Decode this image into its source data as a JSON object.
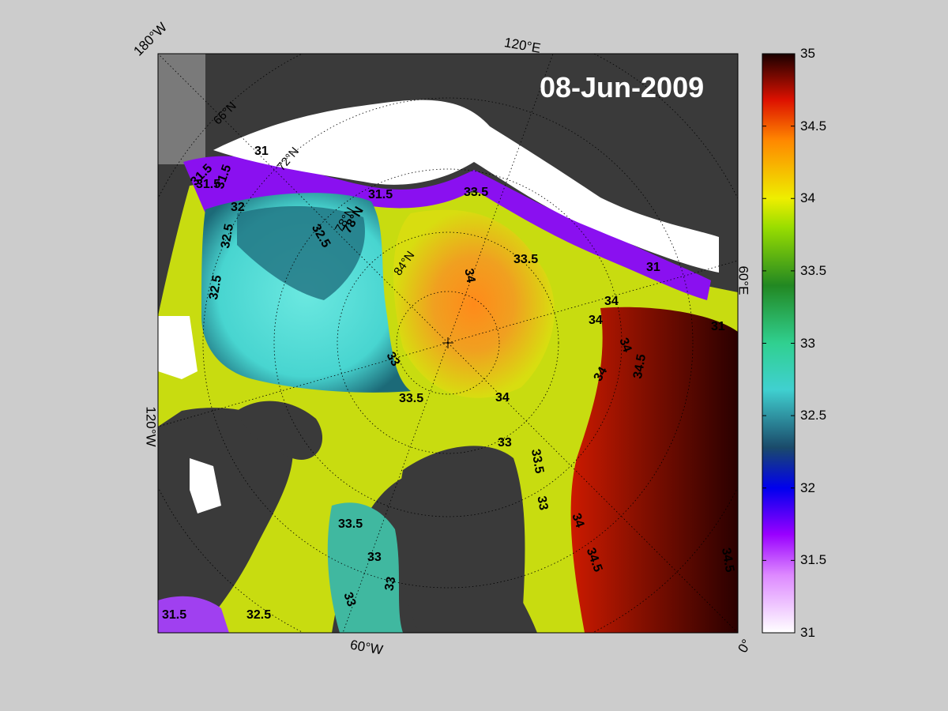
{
  "date": "08-Jun-2009",
  "corner_labels": {
    "top_left": "180°W",
    "top": "120°E",
    "right": "60°E",
    "left": "120°W",
    "bottom": "60°W",
    "bottom_right": "0°"
  },
  "latitude_labels": [
    "66°N",
    "72°N",
    "78°N",
    "84°N"
  ],
  "colorbar": {
    "min": 31,
    "max": 35,
    "ticks": [
      "35",
      "34.5",
      "34",
      "33.5",
      "33",
      "32.5",
      "32",
      "31.5",
      "31"
    ]
  },
  "contour_labels": [
    "31",
    "31.5",
    "31.5",
    "31.5",
    "32",
    "32.5",
    "32.5",
    "32.5",
    "78°N",
    "31.5",
    "31",
    "33.5",
    "33",
    "33.5",
    "34",
    "33.5",
    "34",
    "34",
    "34",
    "34.5",
    "34",
    "33",
    "33.5",
    "34",
    "33",
    "33",
    "33.5",
    "33",
    "34",
    "34.5",
    "34.5",
    "33",
    "31.5",
    "32.5",
    "31"
  ],
  "colors": {
    "land": "#3a3a3a",
    "ice": "#ffffff",
    "background": "#cccccc"
  }
}
